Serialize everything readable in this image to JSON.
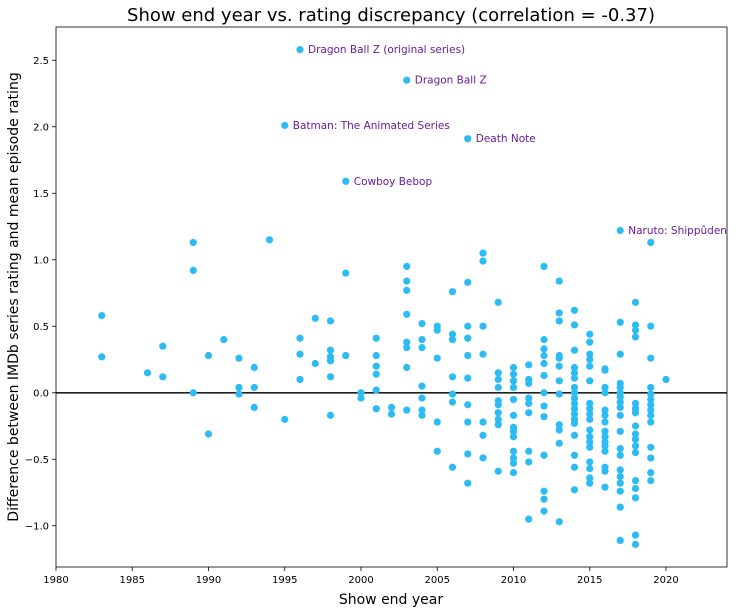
{
  "chart_data": {
    "type": "scatter",
    "title": "Show end year vs. rating discrepancy (correlation = -0.37)",
    "xlabel": "Show end year",
    "ylabel": "Difference between IMDb series rating and mean episode rating",
    "xlim": [
      1980,
      2024
    ],
    "ylim": [
      -1.31,
      2.75
    ],
    "xticks": [
      "1980",
      "1985",
      "1990",
      "1995",
      "2000",
      "2005",
      "2010",
      "2015",
      "2020"
    ],
    "yticks": [
      "−1.0",
      "−0.5",
      "0.0",
      "0.5",
      "1.0",
      "1.5",
      "2.0",
      "2.5"
    ],
    "grid": false,
    "reference_line_y": 0,
    "colors": {
      "points": "#2dbbf3",
      "annotations": "#6a1b9a",
      "reference_line": "#222222"
    },
    "points": [
      [
        1983,
        0.58
      ],
      [
        1983,
        0.27
      ],
      [
        1986,
        0.15
      ],
      [
        1987,
        0.35
      ],
      [
        1987,
        0.12
      ],
      [
        1989,
        1.13
      ],
      [
        1989,
        0.92
      ],
      [
        1989,
        0.0
      ],
      [
        1990,
        0.28
      ],
      [
        1990,
        -0.31
      ],
      [
        1991,
        0.4
      ],
      [
        1992,
        0.26
      ],
      [
        1992,
        0.04
      ],
      [
        1992,
        -0.01
      ],
      [
        1993,
        0.19
      ],
      [
        1993,
        0.04
      ],
      [
        1993,
        -0.11
      ],
      [
        1994,
        1.15
      ],
      [
        1995,
        -0.2
      ],
      [
        1996,
        0.41
      ],
      [
        1996,
        0.29
      ],
      [
        1996,
        0.1
      ],
      [
        1997,
        0.56
      ],
      [
        1997,
        0.22
      ],
      [
        1998,
        0.54
      ],
      [
        1998,
        0.32
      ],
      [
        1998,
        0.27
      ],
      [
        1998,
        0.24
      ],
      [
        1998,
        0.12
      ],
      [
        1998,
        -0.17
      ],
      [
        1999,
        0.9
      ],
      [
        1999,
        0.28
      ],
      [
        2000,
        0.0
      ],
      [
        2000,
        -0.04
      ],
      [
        2001,
        0.41
      ],
      [
        2001,
        0.28
      ],
      [
        2001,
        0.2
      ],
      [
        2001,
        0.14
      ],
      [
        2001,
        0.02
      ],
      [
        2001,
        -0.12
      ],
      [
        2002,
        -0.11
      ],
      [
        2002,
        -0.16
      ],
      [
        2003,
        0.95
      ],
      [
        2003,
        0.84
      ],
      [
        2003,
        0.77
      ],
      [
        2003,
        0.59
      ],
      [
        2003,
        0.38
      ],
      [
        2003,
        0.34
      ],
      [
        2003,
        0.19
      ],
      [
        2003,
        -0.13
      ],
      [
        2004,
        0.52
      ],
      [
        2004,
        0.4
      ],
      [
        2004,
        0.34
      ],
      [
        2004,
        0.05
      ],
      [
        2004,
        -0.04
      ],
      [
        2004,
        -0.13
      ],
      [
        2004,
        -0.17
      ],
      [
        2005,
        0.5
      ],
      [
        2005,
        0.47
      ],
      [
        2005,
        0.26
      ],
      [
        2005,
        -0.22
      ],
      [
        2005,
        -0.44
      ],
      [
        2006,
        0.76
      ],
      [
        2006,
        0.44
      ],
      [
        2006,
        0.4
      ],
      [
        2006,
        0.12
      ],
      [
        2006,
        -0.01
      ],
      [
        2006,
        -0.07
      ],
      [
        2006,
        -0.56
      ],
      [
        2007,
        0.83
      ],
      [
        2007,
        0.5
      ],
      [
        2007,
        0.41
      ],
      [
        2007,
        0.28
      ],
      [
        2007,
        0.11
      ],
      [
        2007,
        -0.09
      ],
      [
        2007,
        -0.22
      ],
      [
        2007,
        -0.46
      ],
      [
        2007,
        -0.68
      ],
      [
        2008,
        1.05
      ],
      [
        2008,
        0.99
      ],
      [
        2008,
        0.5
      ],
      [
        2008,
        0.29
      ],
      [
        2008,
        -0.22
      ],
      [
        2008,
        -0.32
      ],
      [
        2008,
        -0.49
      ],
      [
        2009,
        0.68
      ],
      [
        2009,
        0.15
      ],
      [
        2009,
        0.1
      ],
      [
        2009,
        0.04
      ],
      [
        2009,
        -0.06
      ],
      [
        2009,
        -0.09
      ],
      [
        2009,
        -0.15
      ],
      [
        2009,
        -0.2
      ],
      [
        2009,
        -0.24
      ],
      [
        2009,
        -0.59
      ],
      [
        2010,
        0.19
      ],
      [
        2010,
        0.14
      ],
      [
        2010,
        0.09
      ],
      [
        2010,
        0.04
      ],
      [
        2010,
        -0.05
      ],
      [
        2010,
        -0.17
      ],
      [
        2010,
        -0.26
      ],
      [
        2010,
        -0.29
      ],
      [
        2010,
        -0.33
      ],
      [
        2010,
        -0.44
      ],
      [
        2010,
        -0.49
      ],
      [
        2010,
        -0.53
      ],
      [
        2010,
        -0.6
      ],
      [
        2011,
        0.21
      ],
      [
        2011,
        0.1
      ],
      [
        2011,
        0.07
      ],
      [
        2011,
        -0.04
      ],
      [
        2011,
        -0.08
      ],
      [
        2011,
        -0.15
      ],
      [
        2011,
        -0.44
      ],
      [
        2011,
        -0.52
      ],
      [
        2011,
        -0.95
      ],
      [
        2012,
        0.95
      ],
      [
        2012,
        0.4
      ],
      [
        2012,
        0.33
      ],
      [
        2012,
        0.28
      ],
      [
        2012,
        0.22
      ],
      [
        2012,
        0.13
      ],
      [
        2012,
        0.0
      ],
      [
        2012,
        -0.1
      ],
      [
        2012,
        -0.18
      ],
      [
        2012,
        -0.47
      ],
      [
        2012,
        -0.74
      ],
      [
        2012,
        -0.8
      ],
      [
        2012,
        -0.89
      ],
      [
        2013,
        0.84
      ],
      [
        2013,
        0.6
      ],
      [
        2013,
        0.54
      ],
      [
        2013,
        0.28
      ],
      [
        2013,
        0.26
      ],
      [
        2013,
        0.2
      ],
      [
        2013,
        0.09
      ],
      [
        2013,
        -0.01
      ],
      [
        2013,
        -0.24
      ],
      [
        2013,
        -0.28
      ],
      [
        2013,
        -0.38
      ],
      [
        2013,
        -0.97
      ],
      [
        2014,
        0.62
      ],
      [
        2014,
        0.51
      ],
      [
        2014,
        0.32
      ],
      [
        2014,
        0.19
      ],
      [
        2014,
        0.15
      ],
      [
        2014,
        0.11
      ],
      [
        2014,
        0.04
      ],
      [
        2014,
        0.0
      ],
      [
        2014,
        -0.04
      ],
      [
        2014,
        -0.08
      ],
      [
        2014,
        -0.12
      ],
      [
        2014,
        -0.16
      ],
      [
        2014,
        -0.2
      ],
      [
        2014,
        -0.23
      ],
      [
        2014,
        -0.32
      ],
      [
        2014,
        -0.47
      ],
      [
        2014,
        -0.56
      ],
      [
        2014,
        -0.73
      ],
      [
        2015,
        0.44
      ],
      [
        2015,
        0.38
      ],
      [
        2015,
        0.29
      ],
      [
        2015,
        0.25
      ],
      [
        2015,
        0.2
      ],
      [
        2015,
        0.09
      ],
      [
        2015,
        -0.08
      ],
      [
        2015,
        -0.12
      ],
      [
        2015,
        -0.16
      ],
      [
        2015,
        -0.2
      ],
      [
        2015,
        -0.28
      ],
      [
        2015,
        -0.33
      ],
      [
        2015,
        -0.37
      ],
      [
        2015,
        -0.41
      ],
      [
        2015,
        -0.52
      ],
      [
        2015,
        -0.57
      ],
      [
        2015,
        -0.64
      ],
      [
        2015,
        -0.68
      ],
      [
        2016,
        0.18
      ],
      [
        2016,
        0.17
      ],
      [
        2016,
        0.04
      ],
      [
        2016,
        0.0
      ],
      [
        2016,
        -0.13
      ],
      [
        2016,
        -0.17
      ],
      [
        2016,
        -0.22
      ],
      [
        2016,
        -0.29
      ],
      [
        2016,
        -0.33
      ],
      [
        2016,
        -0.37
      ],
      [
        2016,
        -0.4
      ],
      [
        2016,
        -0.44
      ],
      [
        2016,
        -0.56
      ],
      [
        2016,
        -0.59
      ],
      [
        2016,
        -0.71
      ],
      [
        2017,
        0.53
      ],
      [
        2017,
        0.29
      ],
      [
        2017,
        0.07
      ],
      [
        2017,
        0.04
      ],
      [
        2017,
        0.0
      ],
      [
        2017,
        -0.03
      ],
      [
        2017,
        -0.07
      ],
      [
        2017,
        -0.11
      ],
      [
        2017,
        -0.17
      ],
      [
        2017,
        -0.29
      ],
      [
        2017,
        -0.42
      ],
      [
        2017,
        -0.47
      ],
      [
        2017,
        -0.58
      ],
      [
        2017,
        -0.63
      ],
      [
        2017,
        -0.68
      ],
      [
        2017,
        -0.74
      ],
      [
        2017,
        -0.86
      ],
      [
        2017,
        -1.11
      ],
      [
        2018,
        0.68
      ],
      [
        2018,
        0.51
      ],
      [
        2018,
        0.47
      ],
      [
        2018,
        0.42
      ],
      [
        2018,
        -0.08
      ],
      [
        2018,
        -0.12
      ],
      [
        2018,
        -0.15
      ],
      [
        2018,
        -0.25
      ],
      [
        2018,
        -0.31
      ],
      [
        2018,
        -0.35
      ],
      [
        2018,
        -0.4
      ],
      [
        2018,
        -0.45
      ],
      [
        2018,
        -0.66
      ],
      [
        2018,
        -0.72
      ],
      [
        2018,
        -0.79
      ],
      [
        2018,
        -1.07
      ],
      [
        2018,
        -1.14
      ],
      [
        2019,
        1.13
      ],
      [
        2019,
        0.5
      ],
      [
        2019,
        0.26
      ],
      [
        2019,
        0.04
      ],
      [
        2019,
        -0.01
      ],
      [
        2019,
        -0.05
      ],
      [
        2019,
        -0.09
      ],
      [
        2019,
        -0.13
      ],
      [
        2019,
        -0.17
      ],
      [
        2019,
        -0.22
      ],
      [
        2019,
        -0.41
      ],
      [
        2019,
        -0.49
      ],
      [
        2019,
        -0.6
      ],
      [
        2019,
        -0.66
      ],
      [
        2020,
        0.1
      ]
    ],
    "annotations": [
      {
        "x": 1996,
        "y": 2.58,
        "label": "Dragon Ball Z (original series)"
      },
      {
        "x": 2003,
        "y": 2.35,
        "label": "Dragon Ball Z"
      },
      {
        "x": 1995,
        "y": 2.01,
        "label": "Batman: The Animated Series"
      },
      {
        "x": 2007,
        "y": 1.91,
        "label": "Death Note"
      },
      {
        "x": 1999,
        "y": 1.59,
        "label": "Cowboy Bebop"
      },
      {
        "x": 2017,
        "y": 1.22,
        "label": "Naruto: Shippûden"
      }
    ]
  }
}
